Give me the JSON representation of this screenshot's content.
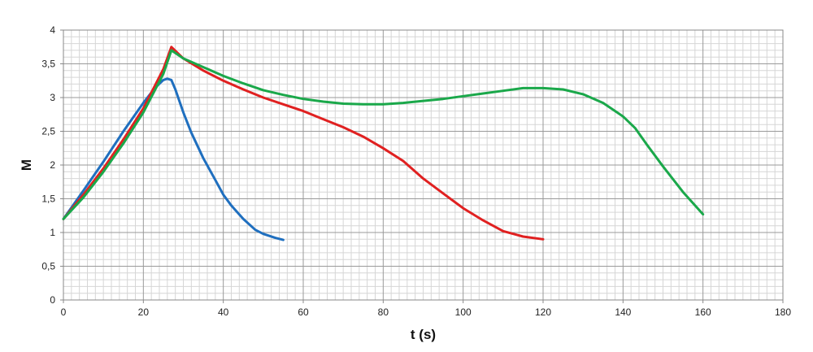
{
  "chart_data": {
    "type": "line",
    "title": "",
    "xlabel": "t (s)",
    "ylabel": "M",
    "xlim": [
      0,
      180
    ],
    "ylim": [
      0,
      4
    ],
    "x_ticks": [
      "0",
      "20",
      "40",
      "60",
      "80",
      "100",
      "120",
      "140",
      "160",
      "180"
    ],
    "y_ticks": [
      "0",
      "0,5",
      "1",
      "1,5",
      "2",
      "2,5",
      "3",
      "3,5",
      "4"
    ],
    "grid": true,
    "legend": "none",
    "series": [
      {
        "color": "#1f6fbf",
        "points": [
          [
            0,
            1.2
          ],
          [
            5,
            1.62
          ],
          [
            10,
            2.05
          ],
          [
            15,
            2.5
          ],
          [
            20,
            2.92
          ],
          [
            23,
            3.15
          ],
          [
            25,
            3.26
          ],
          [
            26,
            3.28
          ],
          [
            27,
            3.26
          ],
          [
            28,
            3.12
          ],
          [
            30,
            2.78
          ],
          [
            32,
            2.48
          ],
          [
            35,
            2.1
          ],
          [
            38,
            1.78
          ],
          [
            40,
            1.56
          ],
          [
            42,
            1.4
          ],
          [
            45,
            1.2
          ],
          [
            48,
            1.04
          ],
          [
            50,
            0.98
          ],
          [
            53,
            0.92
          ],
          [
            55,
            0.89
          ]
        ]
      },
      {
        "color": "#e02020",
        "points": [
          [
            0,
            1.2
          ],
          [
            5,
            1.56
          ],
          [
            10,
            1.95
          ],
          [
            15,
            2.38
          ],
          [
            20,
            2.84
          ],
          [
            25,
            3.42
          ],
          [
            27,
            3.75
          ],
          [
            30,
            3.58
          ],
          [
            35,
            3.4
          ],
          [
            40,
            3.25
          ],
          [
            45,
            3.12
          ],
          [
            50,
            3.0
          ],
          [
            55,
            2.9
          ],
          [
            60,
            2.8
          ],
          [
            65,
            2.68
          ],
          [
            70,
            2.56
          ],
          [
            75,
            2.42
          ],
          [
            80,
            2.25
          ],
          [
            85,
            2.06
          ],
          [
            90,
            1.8
          ],
          [
            95,
            1.58
          ],
          [
            100,
            1.36
          ],
          [
            105,
            1.18
          ],
          [
            110,
            1.02
          ],
          [
            115,
            0.94
          ],
          [
            120,
            0.9
          ]
        ]
      },
      {
        "color": "#1aa84a",
        "points": [
          [
            0,
            1.2
          ],
          [
            5,
            1.52
          ],
          [
            10,
            1.9
          ],
          [
            15,
            2.32
          ],
          [
            20,
            2.78
          ],
          [
            25,
            3.35
          ],
          [
            27,
            3.7
          ],
          [
            30,
            3.58
          ],
          [
            35,
            3.45
          ],
          [
            40,
            3.32
          ],
          [
            45,
            3.21
          ],
          [
            50,
            3.11
          ],
          [
            55,
            3.04
          ],
          [
            60,
            2.98
          ],
          [
            65,
            2.94
          ],
          [
            70,
            2.91
          ],
          [
            75,
            2.9
          ],
          [
            80,
            2.9
          ],
          [
            85,
            2.92
          ],
          [
            90,
            2.95
          ],
          [
            95,
            2.98
          ],
          [
            100,
            3.02
          ],
          [
            105,
            3.06
          ],
          [
            110,
            3.1
          ],
          [
            115,
            3.14
          ],
          [
            120,
            3.14
          ],
          [
            125,
            3.12
          ],
          [
            130,
            3.05
          ],
          [
            135,
            2.92
          ],
          [
            140,
            2.72
          ],
          [
            143,
            2.55
          ],
          [
            146,
            2.3
          ],
          [
            150,
            1.98
          ],
          [
            155,
            1.6
          ],
          [
            160,
            1.27
          ]
        ]
      }
    ]
  }
}
